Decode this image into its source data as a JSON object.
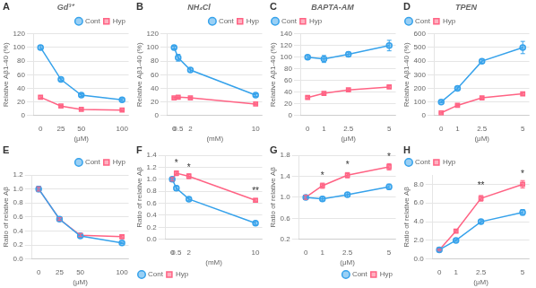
{
  "chart_data": [
    {
      "type": "line",
      "title": "Gd³⁺",
      "xlabel": "(μM)",
      "ylabel": "Relative Aβ1-40 (%)",
      "x": [
        0,
        25,
        50,
        100
      ],
      "xlim": [
        -8,
        108
      ],
      "xticks": [
        0,
        25,
        50,
        100
      ],
      "ylim": [
        0,
        120
      ],
      "yticks": [
        0,
        20,
        40,
        60,
        80,
        100,
        120
      ],
      "series": [
        {
          "name": "Cont",
          "marker": "circle",
          "values": [
            100,
            53,
            30,
            23
          ],
          "errors": [
            3,
            2,
            2,
            2
          ]
        },
        {
          "name": "Hyp",
          "marker": "square",
          "values": [
            27,
            14,
            9,
            8
          ],
          "errors": [
            2,
            1,
            1,
            1
          ]
        }
      ],
      "grid": "y",
      "legend": "upper right",
      "annotations": [
        {
          "text": "A"
        }
      ]
    },
    {
      "type": "line",
      "title": "NH₄Cl",
      "xlabel": "(mM)",
      "ylabel": "Relative Aβ1-40 (%)",
      "x": [
        0,
        0.5,
        2,
        10
      ],
      "xlim": [
        -0.8,
        10.8
      ],
      "xticks": [
        0,
        0.5,
        2,
        10
      ],
      "ylim": [
        0,
        120
      ],
      "yticks": [
        0,
        20,
        40,
        60,
        80,
        100,
        120
      ],
      "series": [
        {
          "name": "Cont",
          "marker": "circle",
          "values": [
            100,
            85,
            67,
            30
          ],
          "errors": [
            2,
            5,
            3,
            2
          ]
        },
        {
          "name": "Hyp",
          "marker": "square",
          "values": [
            26,
            27,
            26,
            17
          ],
          "errors": [
            1,
            2,
            1,
            1
          ]
        }
      ],
      "grid": "y",
      "legend": "upper right",
      "annotations": [
        {
          "text": "B"
        }
      ]
    },
    {
      "type": "line",
      "title": "BAPTA-AM",
      "xlabel": "(μM)",
      "ylabel": "Relative Aβ1-40 (%)",
      "x": [
        0,
        1,
        2.5,
        5
      ],
      "xlim": [
        -0.4,
        5.4
      ],
      "xticks": [
        0,
        1,
        2.5,
        5
      ],
      "ylim": [
        0,
        140
      ],
      "yticks": [
        0,
        20,
        40,
        60,
        80,
        100,
        120,
        140
      ],
      "series": [
        {
          "name": "Cont",
          "marker": "circle",
          "values": [
            100,
            97,
            105,
            120
          ],
          "errors": [
            3,
            6,
            4,
            9
          ]
        },
        {
          "name": "Hyp",
          "marker": "square",
          "values": [
            31,
            38,
            44,
            49
          ],
          "errors": [
            2,
            2,
            2,
            2
          ]
        }
      ],
      "grid": "y",
      "legend": "upper left",
      "annotations": [
        {
          "text": "C"
        }
      ]
    },
    {
      "type": "line",
      "title": "TPEN",
      "xlabel": "(μM)",
      "ylabel": "Relative Aβ1-40 (%)",
      "x": [
        0,
        1,
        2.5,
        5
      ],
      "xlim": [
        -0.4,
        5.4
      ],
      "xticks": [
        0,
        1,
        2.5,
        5
      ],
      "ylim": [
        0,
        600
      ],
      "yticks": [
        0,
        100,
        200,
        300,
        400,
        500,
        600
      ],
      "series": [
        {
          "name": "Cont",
          "marker": "circle",
          "values": [
            100,
            200,
            400,
            500
          ],
          "errors": [
            5,
            10,
            15,
            45
          ]
        },
        {
          "name": "Hyp",
          "marker": "square",
          "values": [
            20,
            75,
            130,
            160
          ],
          "errors": [
            3,
            5,
            8,
            10
          ]
        }
      ],
      "grid": "y",
      "legend": "upper left",
      "annotations": [
        {
          "text": "D"
        }
      ]
    },
    {
      "type": "line",
      "xlabel": "(μM)",
      "ylabel": "Ratio of relative Aβ",
      "x": [
        0,
        25,
        50,
        100
      ],
      "xlim": [
        -8,
        108
      ],
      "xticks": [
        0,
        25,
        50,
        100
      ],
      "ylim": [
        0.0,
        1.2
      ],
      "yticks": [
        {
          "value": 0.0,
          "label": "0.0"
        },
        0.2,
        0.4,
        0.6,
        0.8,
        {
          "value": 1.0,
          "label": "1.0"
        },
        1.2
      ],
      "series": [
        {
          "name": "Cont",
          "marker": "circle",
          "values": [
            1.0,
            0.57,
            0.33,
            0.23
          ],
          "errors": [
            0.04,
            0.02,
            0.02,
            0.01
          ]
        },
        {
          "name": "Hyp",
          "marker": "square",
          "values": [
            1.0,
            0.57,
            0.34,
            0.32
          ],
          "errors": [
            0.03,
            0.02,
            0.02,
            0.02
          ]
        }
      ],
      "grid": "y",
      "legend": "upper right",
      "annotations": [
        {
          "text": "E"
        }
      ]
    },
    {
      "type": "line",
      "xlabel": "(mM)",
      "ylabel": "Ratio of relative Aβ",
      "x": [
        0,
        0.5,
        2,
        10
      ],
      "xlim": [
        -0.8,
        10.8
      ],
      "xticks": [
        0,
        0.5,
        2,
        10
      ],
      "ylim": [
        0.0,
        1.4
      ],
      "yticks": [
        {
          "value": 0.0,
          "label": "0.0"
        },
        0.2,
        0.4,
        0.6,
        0.8,
        {
          "value": 1.0,
          "label": "1.0"
        },
        1.2,
        1.4
      ],
      "series": [
        {
          "name": "Cont",
          "marker": "circle",
          "values": [
            1.0,
            0.85,
            0.67,
            0.27
          ],
          "errors": [
            0.03,
            0.04,
            0.03,
            0.03
          ]
        },
        {
          "name": "Hyp",
          "marker": "square",
          "values": [
            1.0,
            1.1,
            1.05,
            0.65
          ],
          "errors": [
            0.03,
            0.04,
            0.04,
            0.03
          ]
        }
      ],
      "grid": "y",
      "legend": "lower left",
      "annotations": [
        {
          "text": "F"
        },
        {
          "text": "*",
          "x": 0.5,
          "y": 1.19
        },
        {
          "text": "*",
          "x": 2,
          "y": 1.12
        },
        {
          "text": "**",
          "x": 10,
          "y": 0.73
        }
      ]
    },
    {
      "type": "line",
      "xlabel": "(μM)",
      "ylabel": "Ratio of relative Aβ",
      "x": [
        0,
        1,
        2.5,
        5
      ],
      "xlim": [
        -0.4,
        5.4
      ],
      "xticks": [
        0,
        1,
        2.5,
        5
      ],
      "ylim": [
        0.2,
        1.8
      ],
      "yticks": [
        0.2,
        0.6,
        {
          "value": 1.0,
          "label": "1.0"
        },
        1.4,
        1.8
      ],
      "series": [
        {
          "name": "Cont",
          "marker": "circle",
          "values": [
            1.0,
            0.97,
            1.05,
            1.2
          ],
          "errors": [
            0.04,
            0.04,
            0.04,
            0.05
          ]
        },
        {
          "name": "Hyp",
          "marker": "square",
          "values": [
            1.0,
            1.22,
            1.42,
            1.58
          ],
          "errors": [
            0.04,
            0.05,
            0.05,
            0.06
          ]
        }
      ],
      "grid": "y",
      "legend": "lower right",
      "annotations": [
        {
          "text": "G"
        },
        {
          "text": "*",
          "x": 1,
          "y": 1.32
        },
        {
          "text": "*",
          "x": 2.5,
          "y": 1.52
        },
        {
          "text": "*",
          "x": 5,
          "y": 1.68
        }
      ]
    },
    {
      "type": "line",
      "xlabel": "(μM)",
      "ylabel": "Ratio of relative Aβ",
      "x": [
        0,
        1,
        2.5,
        5
      ],
      "xlim": [
        -0.4,
        5.4
      ],
      "xticks": [
        0,
        1,
        2.5,
        5
      ],
      "ylim": [
        0.0,
        9.0
      ],
      "yticks": [
        {
          "value": 0.0,
          "label": "0.0"
        },
        {
          "value": 2.0,
          "label": "2.0"
        },
        {
          "value": 4.0,
          "label": "4.0"
        },
        {
          "value": 6.0,
          "label": "6.0"
        },
        {
          "value": 8.0,
          "label": "8.0"
        }
      ],
      "series": [
        {
          "name": "Cont",
          "marker": "circle",
          "values": [
            1.0,
            2.0,
            4.0,
            5.0
          ],
          "errors": [
            0.05,
            0.1,
            0.2,
            0.3
          ]
        },
        {
          "name": "Hyp",
          "marker": "square",
          "values": [
            1.0,
            3.0,
            6.5,
            8.0
          ],
          "errors": [
            0.05,
            0.15,
            0.3,
            0.4
          ]
        }
      ],
      "grid": "y",
      "legend": "upper left",
      "annotations": [
        {
          "text": "H"
        },
        {
          "text": "**",
          "x": 2.5,
          "y": 7.3
        },
        {
          "text": "*",
          "x": 5,
          "y": 8.6
        }
      ]
    }
  ]
}
